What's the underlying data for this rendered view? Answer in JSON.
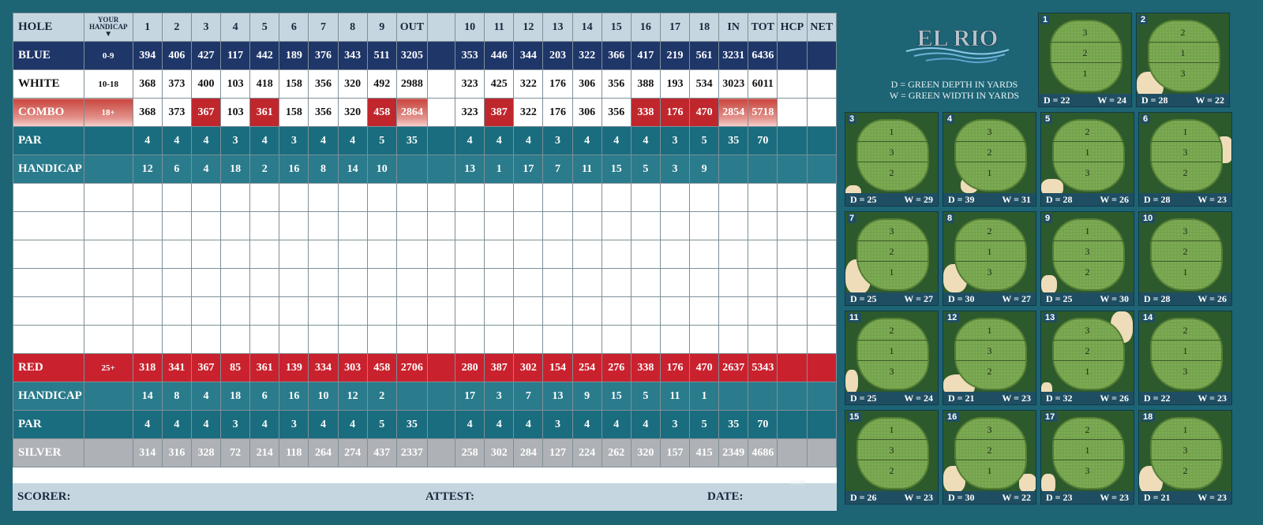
{
  "header": {
    "hole": "HOLE",
    "handicap_label": "YOUR\nHANDICAP",
    "out": "OUT",
    "in": "IN",
    "tot": "TOT",
    "hcp": "HCP",
    "net": "NET",
    "front": [
      "1",
      "2",
      "3",
      "4",
      "5",
      "6",
      "7",
      "8",
      "9"
    ],
    "back": [
      "10",
      "11",
      "12",
      "13",
      "14",
      "15",
      "16",
      "17",
      "18"
    ]
  },
  "rows": {
    "blue": {
      "name": "BLUE",
      "hc": "0-9",
      "front": [
        "394",
        "406",
        "427",
        "117",
        "442",
        "189",
        "376",
        "343",
        "511"
      ],
      "out": "3205",
      "back": [
        "353",
        "446",
        "344",
        "203",
        "322",
        "366",
        "417",
        "219",
        "561"
      ],
      "in": "3231",
      "tot": "6436"
    },
    "white": {
      "name": "WHITE",
      "hc": "10-18",
      "front": [
        "368",
        "373",
        "400",
        "103",
        "418",
        "158",
        "356",
        "320",
        "492"
      ],
      "out": "2988",
      "back": [
        "323",
        "425",
        "322",
        "176",
        "306",
        "356",
        "388",
        "193",
        "534"
      ],
      "in": "3023",
      "tot": "6011"
    },
    "combo": {
      "name": "COMBO",
      "hc": "18+",
      "front": [
        "368",
        "373",
        "367",
        "103",
        "361",
        "158",
        "356",
        "320",
        "458"
      ],
      "out": "2864",
      "back": [
        "323",
        "387",
        "322",
        "176",
        "306",
        "356",
        "338",
        "176",
        "470"
      ],
      "in": "2854",
      "tot": "5718"
    },
    "par1": {
      "name": "PAR",
      "hc": "",
      "front": [
        "4",
        "4",
        "4",
        "3",
        "4",
        "3",
        "4",
        "4",
        "5"
      ],
      "out": "35",
      "back": [
        "4",
        "4",
        "4",
        "3",
        "4",
        "4",
        "4",
        "3",
        "5"
      ],
      "in": "35",
      "tot": "70"
    },
    "hcp1": {
      "name": "HANDICAP",
      "hc": "",
      "front": [
        "12",
        "6",
        "4",
        "18",
        "2",
        "16",
        "8",
        "14",
        "10"
      ],
      "out": "",
      "back": [
        "13",
        "1",
        "17",
        "7",
        "11",
        "15",
        "5",
        "3",
        "9"
      ],
      "in": "",
      "tot": ""
    },
    "red": {
      "name": "RED",
      "hc": "25+",
      "front": [
        "318",
        "341",
        "367",
        "85",
        "361",
        "139",
        "334",
        "303",
        "458"
      ],
      "out": "2706",
      "back": [
        "280",
        "387",
        "302",
        "154",
        "254",
        "276",
        "338",
        "176",
        "470"
      ],
      "in": "2637",
      "tot": "5343"
    },
    "hcp2": {
      "name": "HANDICAP",
      "hc": "",
      "front": [
        "14",
        "8",
        "4",
        "18",
        "6",
        "16",
        "10",
        "12",
        "2"
      ],
      "out": "",
      "back": [
        "17",
        "3",
        "7",
        "13",
        "9",
        "15",
        "5",
        "11",
        "1"
      ],
      "in": "",
      "tot": ""
    },
    "par2": {
      "name": "PAR",
      "hc": "",
      "front": [
        "4",
        "4",
        "4",
        "3",
        "4",
        "3",
        "4",
        "4",
        "5"
      ],
      "out": "35",
      "back": [
        "4",
        "4",
        "4",
        "3",
        "4",
        "4",
        "4",
        "3",
        "5"
      ],
      "in": "35",
      "tot": "70"
    },
    "silver": {
      "name": "SILVER",
      "hc": "",
      "front": [
        "314",
        "316",
        "328",
        "72",
        "214",
        "118",
        "264",
        "274",
        "437"
      ],
      "out": "2337",
      "back": [
        "258",
        "302",
        "284",
        "127",
        "224",
        "262",
        "320",
        "157",
        "415"
      ],
      "in": "2349",
      "tot": "4686"
    }
  },
  "footer": {
    "scorer": "SCORER:",
    "attest": "ATTEST:",
    "date": "DATE:",
    "version": "04/20"
  },
  "brand": {
    "logo": "EL RIO"
  },
  "legend": {
    "depth": "D = GREEN DEPTH IN YARDS",
    "width": "W = GREEN WIDTH IN YARDS"
  },
  "greens": [
    {
      "hole": "1",
      "d": "D = 22",
      "w": "W = 24",
      "zones": [
        "3",
        "2",
        "1"
      ]
    },
    {
      "hole": "2",
      "d": "D = 28",
      "w": "W = 22",
      "zones": [
        "2",
        "1",
        "3"
      ]
    },
    {
      "hole": "3",
      "d": "D = 25",
      "w": "W = 29",
      "zones": [
        "1",
        "3",
        "2"
      ]
    },
    {
      "hole": "4",
      "d": "D = 39",
      "w": "W = 31",
      "zones": [
        "3",
        "2",
        "1"
      ]
    },
    {
      "hole": "5",
      "d": "D = 28",
      "w": "W = 26",
      "zones": [
        "2",
        "1",
        "3"
      ]
    },
    {
      "hole": "6",
      "d": "D = 28",
      "w": "W = 23",
      "zones": [
        "1",
        "3",
        "2"
      ]
    },
    {
      "hole": "7",
      "d": "D = 25",
      "w": "W = 27",
      "zones": [
        "3",
        "2",
        "1"
      ]
    },
    {
      "hole": "8",
      "d": "D = 30",
      "w": "W = 27",
      "zones": [
        "2",
        "1",
        "3"
      ]
    },
    {
      "hole": "9",
      "d": "D = 25",
      "w": "W = 30",
      "zones": [
        "1",
        "3",
        "2"
      ]
    },
    {
      "hole": "10",
      "d": "D = 28",
      "w": "W = 26",
      "zones": [
        "3",
        "2",
        "1"
      ]
    },
    {
      "hole": "11",
      "d": "D = 25",
      "w": "W = 24",
      "zones": [
        "2",
        "1",
        "3"
      ]
    },
    {
      "hole": "12",
      "d": "D = 21",
      "w": "W = 23",
      "zones": [
        "1",
        "3",
        "2"
      ]
    },
    {
      "hole": "13",
      "d": "D = 32",
      "w": "W = 26",
      "zones": [
        "3",
        "2",
        "1"
      ]
    },
    {
      "hole": "14",
      "d": "D = 22",
      "w": "W = 23",
      "zones": [
        "2",
        "1",
        "3"
      ]
    },
    {
      "hole": "15",
      "d": "D = 26",
      "w": "W = 23",
      "zones": [
        "1",
        "3",
        "2"
      ]
    },
    {
      "hole": "16",
      "d": "D = 30",
      "w": "W = 22",
      "zones": [
        "3",
        "2",
        "1"
      ]
    },
    {
      "hole": "17",
      "d": "D = 23",
      "w": "W = 23",
      "zones": [
        "2",
        "1",
        "3"
      ]
    },
    {
      "hole": "18",
      "d": "D = 21",
      "w": "W = 23",
      "zones": [
        "1",
        "3",
        "2"
      ]
    }
  ],
  "colors": {
    "page_bg": "#1d6475",
    "blue_tee": "#1f3668",
    "red_tee": "#c9222e",
    "teal_row": "#1a6d7e",
    "silver_tee": "#aeb2b6",
    "header_row": "#c6d6e0",
    "green": "#76a34e",
    "sand": "#efdcb9"
  },
  "icons": {
    "handicap_arrow": "triangle-down-icon"
  }
}
